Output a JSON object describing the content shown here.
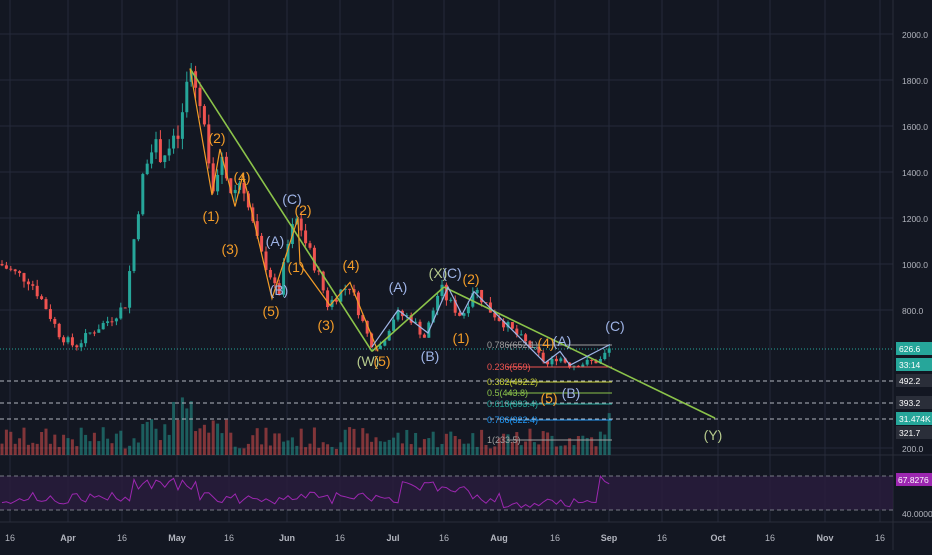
{
  "chart_data": {
    "type": "candlestick",
    "colors": {
      "background": "#131722",
      "grid": "#242a3a",
      "up": "#26a69a",
      "down": "#ef5350",
      "trendline": "#8bc34a",
      "wave_orange": "#f39c28",
      "wave_blue": "#9fb4e6",
      "rsi": "#9c27b0",
      "rsi_band": "#2b1d3f",
      "label_teal": "#26a69a",
      "label_gray": "#2a2e39"
    },
    "price_axis": {
      "ticks": [
        "2000.0",
        "1800.0",
        "1600.0",
        "1400.0",
        "1200.0",
        "1000.0",
        "800.0",
        "200.0"
      ],
      "range": [
        200,
        2000
      ]
    },
    "price_labels": [
      {
        "text": "626.6",
        "style": "teal"
      },
      {
        "text": "33:14",
        "style": "teal"
      },
      {
        "text": "492.2",
        "style": "gray"
      },
      {
        "text": "393.2",
        "style": "gray"
      },
      {
        "text": "31.474K",
        "style": "teal"
      },
      {
        "text": "321.7",
        "style": "gray"
      }
    ],
    "rsi_axis": {
      "ticks": [
        "80.0000",
        "40.0000"
      ],
      "current": "67.8276"
    },
    "time_axis": {
      "ticks": [
        "16",
        "Apr",
        "16",
        "May",
        "16",
        "Jun",
        "16",
        "Jul",
        "16",
        "Aug",
        "16",
        "Sep",
        "16",
        "Oct",
        "16",
        "Nov",
        "16"
      ]
    },
    "wave_labels": [
      {
        "text": "(2)",
        "color": "orange"
      },
      {
        "text": "(1)",
        "color": "orange"
      },
      {
        "text": "(4)",
        "color": "orange"
      },
      {
        "text": "(3)",
        "color": "orange"
      },
      {
        "text": "(C)",
        "color": "blue"
      },
      {
        "text": "(2)",
        "color": "orange"
      },
      {
        "text": "(A)",
        "color": "blue"
      },
      {
        "text": "(1)",
        "color": "orange"
      },
      {
        "text": "(B)",
        "color": "blue"
      },
      {
        "text": "(5)",
        "color": "orange"
      },
      {
        "text": "(4)",
        "color": "orange"
      },
      {
        "text": "(3)",
        "color": "orange"
      },
      {
        "text": "(A)",
        "color": "blue"
      },
      {
        "text": "(W)",
        "color": "green"
      },
      {
        "text": "(5)",
        "color": "orange"
      },
      {
        "text": "(B)",
        "color": "blue"
      },
      {
        "text": "(X)",
        "color": "green"
      },
      {
        "text": "(C)",
        "color": "blue"
      },
      {
        "text": "(2)",
        "color": "orange"
      },
      {
        "text": "(1)",
        "color": "orange"
      },
      {
        "text": "(4)",
        "color": "orange"
      },
      {
        "text": "(A)",
        "color": "blue"
      },
      {
        "text": "(5)",
        "color": "orange"
      },
      {
        "text": "(B)",
        "color": "blue"
      },
      {
        "text": "(C)",
        "color": "blue"
      },
      {
        "text": "(Y)",
        "color": "green"
      }
    ],
    "fib_levels": [
      {
        "ratio": "0.786",
        "price": "652.1"
      },
      {
        "ratio": "0.236",
        "price": "559"
      },
      {
        "ratio": "0.382",
        "price": "492.2"
      },
      {
        "ratio": "0.5",
        "price": "443.8"
      },
      {
        "ratio": "0.618",
        "price": "393.4"
      },
      {
        "ratio": "0.786",
        "price": "322.4"
      },
      {
        "ratio": "1",
        "price": "233.5"
      }
    ],
    "trendline_points": [
      {
        "date": "May 1",
        "price": 1850
      },
      {
        "date": "Jun 26",
        "price": 620
      },
      {
        "date": "Jul 14",
        "price": 900
      },
      {
        "date": "Sep 25",
        "price": 330
      }
    ]
  }
}
